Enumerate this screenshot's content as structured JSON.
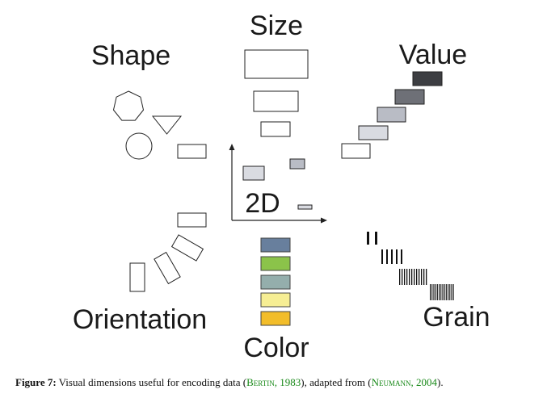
{
  "labels": {
    "shape": "Shape",
    "size": "Size",
    "value": "Value",
    "two_d": "2D",
    "orientation": "Orientation",
    "color": "Color",
    "grain": "Grain"
  },
  "caption": {
    "figure_label": "Figure 7:",
    "text_before": " Visual dimensions useful for encoding data (",
    "cite1_author": "Bertin",
    "cite1_sep": ", ",
    "cite1_year": "1983",
    "text_middle": "), adapted from (",
    "cite2_author": "Neumann",
    "cite2_sep": ", ",
    "cite2_year": "2004",
    "text_after": ")."
  },
  "colors": {
    "value_shades": [
      "#ffffff",
      "#d9dbe1",
      "#b9bcc5",
      "#6e7077",
      "#3d3e42"
    ],
    "color_swatches": [
      "#687f9d",
      "#8bc34a",
      "#94aeac",
      "#f6ee94",
      "#f2bd2a"
    ],
    "stroke": "#222222",
    "citation": "#1a8a1a"
  }
}
